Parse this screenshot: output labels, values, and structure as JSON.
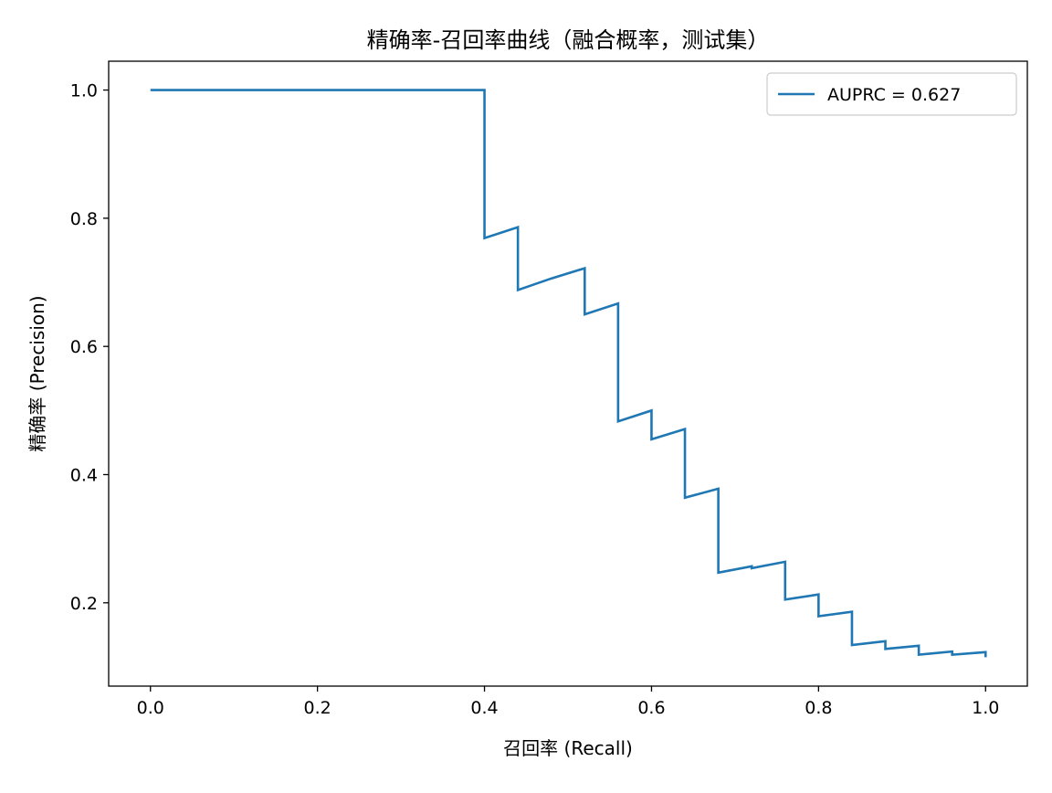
{
  "chart_data": {
    "type": "line",
    "title": "精确率-召回率曲线（融合概率，测试集）",
    "xlabel": "召回率 (Recall)",
    "ylabel": "精确率 (Precision)",
    "xlim": [
      -0.05,
      1.05
    ],
    "ylim": [
      0.07,
      1.045
    ],
    "x_ticks": [
      0.0,
      0.2,
      0.4,
      0.6,
      0.8,
      1.0
    ],
    "x_tick_labels": [
      "0.0",
      "0.2",
      "0.4",
      "0.6",
      "0.8",
      "1.0"
    ],
    "y_ticks": [
      0.2,
      0.4,
      0.6,
      0.8,
      1.0
    ],
    "y_tick_labels": [
      "0.2",
      "0.4",
      "0.6",
      "0.8",
      "1.0"
    ],
    "grid": false,
    "legend_position": "top-right",
    "series": [
      {
        "name": "AUPRC = 0.627",
        "color": "#1f77b4",
        "x": [
          0.0,
          0.4,
          0.4,
          0.44,
          0.44,
          0.48,
          0.52,
          0.52,
          0.56,
          0.56,
          0.6,
          0.6,
          0.64,
          0.64,
          0.68,
          0.68,
          0.72,
          0.72,
          0.76,
          0.76,
          0.8,
          0.8,
          0.84,
          0.84,
          0.88,
          0.88,
          0.92,
          0.92,
          0.96,
          0.96,
          1.0,
          1.0
        ],
        "y": [
          1.0,
          1.0,
          0.769,
          0.786,
          0.688,
          0.706,
          0.722,
          0.65,
          0.667,
          0.483,
          0.5,
          0.455,
          0.471,
          0.364,
          0.378,
          0.247,
          0.257,
          0.254,
          0.264,
          0.205,
          0.213,
          0.179,
          0.186,
          0.134,
          0.14,
          0.128,
          0.133,
          0.119,
          0.124,
          0.119,
          0.123,
          0.115
        ]
      }
    ]
  }
}
